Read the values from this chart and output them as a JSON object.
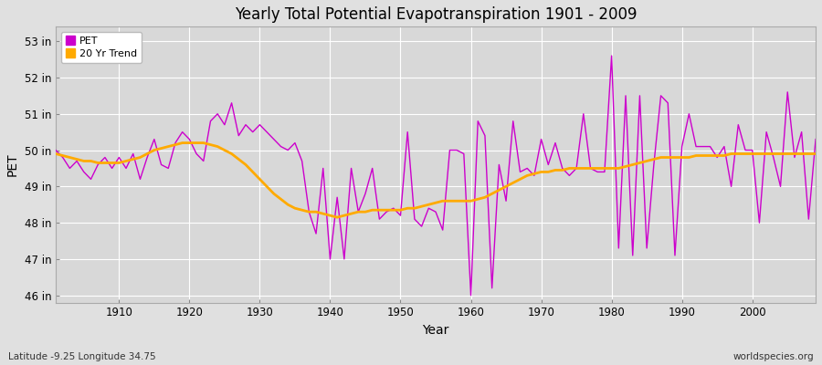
{
  "title": "Yearly Total Potential Evapotranspiration 1901 - 2009",
  "xlabel": "Year",
  "ylabel": "PET",
  "subtitle_left": "Latitude -9.25 Longitude 34.75",
  "subtitle_right": "worldspecies.org",
  "pet_color": "#cc00cc",
  "trend_color": "#ffaa00",
  "bg_color": "#e0e0e0",
  "plot_bg_color": "#d8d8d8",
  "ylim": [
    45.8,
    53.4
  ],
  "yticks": [
    46,
    47,
    48,
    49,
    50,
    51,
    52,
    53
  ],
  "ytick_labels": [
    "46 in",
    "47 in",
    "48 in",
    "49 in",
    "50 in",
    "51 in",
    "52 in",
    "53 in"
  ],
  "xlim": [
    1901,
    2009
  ],
  "years": [
    1901,
    1902,
    1903,
    1904,
    1905,
    1906,
    1907,
    1908,
    1909,
    1910,
    1911,
    1912,
    1913,
    1914,
    1915,
    1916,
    1917,
    1918,
    1919,
    1920,
    1921,
    1922,
    1923,
    1924,
    1925,
    1926,
    1927,
    1928,
    1929,
    1930,
    1931,
    1932,
    1933,
    1934,
    1935,
    1936,
    1937,
    1938,
    1939,
    1940,
    1941,
    1942,
    1943,
    1944,
    1945,
    1946,
    1947,
    1948,
    1949,
    1950,
    1951,
    1952,
    1953,
    1954,
    1955,
    1956,
    1957,
    1958,
    1959,
    1960,
    1961,
    1962,
    1963,
    1964,
    1965,
    1966,
    1967,
    1968,
    1969,
    1970,
    1971,
    1972,
    1973,
    1974,
    1975,
    1976,
    1977,
    1978,
    1979,
    1980,
    1981,
    1982,
    1983,
    1984,
    1985,
    1986,
    1987,
    1988,
    1989,
    1990,
    1991,
    1992,
    1993,
    1994,
    1995,
    1996,
    1997,
    1998,
    1999,
    2000,
    2001,
    2002,
    2003,
    2004,
    2005,
    2006,
    2007,
    2008,
    2009
  ],
  "pet": [
    50.0,
    49.8,
    49.5,
    49.7,
    49.4,
    49.2,
    49.6,
    49.8,
    49.5,
    49.8,
    49.5,
    49.9,
    49.2,
    49.8,
    50.3,
    49.6,
    49.5,
    50.2,
    50.5,
    50.3,
    49.9,
    49.7,
    50.8,
    51.0,
    50.7,
    51.3,
    50.4,
    50.7,
    50.5,
    50.7,
    50.5,
    50.3,
    50.1,
    50.0,
    50.2,
    49.7,
    48.3,
    47.7,
    49.5,
    47.0,
    48.7,
    47.0,
    49.5,
    48.3,
    48.8,
    49.5,
    48.1,
    48.3,
    48.4,
    48.2,
    50.5,
    48.1,
    47.9,
    48.4,
    48.3,
    47.8,
    50.0,
    50.0,
    49.9,
    46.0,
    50.8,
    50.4,
    46.2,
    49.6,
    48.6,
    50.8,
    49.4,
    49.5,
    49.3,
    50.3,
    49.6,
    50.2,
    49.5,
    49.3,
    49.5,
    51.0,
    49.5,
    49.4,
    49.4,
    52.6,
    47.3,
    51.5,
    47.1,
    51.5,
    47.3,
    49.6,
    51.5,
    51.3,
    47.1,
    50.1,
    51.0,
    50.1,
    50.1,
    50.1,
    49.8,
    50.1,
    49.0,
    50.7,
    50.0,
    50.0,
    48.0,
    50.5,
    49.8,
    49.0,
    51.6,
    49.8,
    50.5,
    48.1,
    50.3
  ],
  "trend": [
    49.9,
    49.85,
    49.8,
    49.75,
    49.7,
    49.7,
    49.65,
    49.65,
    49.65,
    49.65,
    49.7,
    49.75,
    49.8,
    49.9,
    50.0,
    50.05,
    50.1,
    50.15,
    50.2,
    50.2,
    50.2,
    50.2,
    50.15,
    50.1,
    50.0,
    49.9,
    49.75,
    49.6,
    49.4,
    49.2,
    49.0,
    48.8,
    48.65,
    48.5,
    48.4,
    48.35,
    48.3,
    48.3,
    48.25,
    48.2,
    48.15,
    48.2,
    48.25,
    48.3,
    48.3,
    48.35,
    48.35,
    48.35,
    48.35,
    48.35,
    48.4,
    48.4,
    48.45,
    48.5,
    48.55,
    48.6,
    48.6,
    48.6,
    48.6,
    48.6,
    48.65,
    48.7,
    48.8,
    48.9,
    49.0,
    49.1,
    49.2,
    49.3,
    49.35,
    49.4,
    49.4,
    49.45,
    49.45,
    49.5,
    49.5,
    49.5,
    49.5,
    49.5,
    49.5,
    49.5,
    49.5,
    49.55,
    49.6,
    49.65,
    49.7,
    49.75,
    49.8,
    49.8,
    49.8,
    49.8,
    49.8,
    49.85,
    49.85,
    49.85,
    49.85,
    49.85,
    49.9,
    49.9,
    49.9,
    49.9,
    49.9,
    49.9,
    49.9,
    49.9,
    49.9,
    49.9,
    49.9,
    49.9,
    49.9
  ]
}
